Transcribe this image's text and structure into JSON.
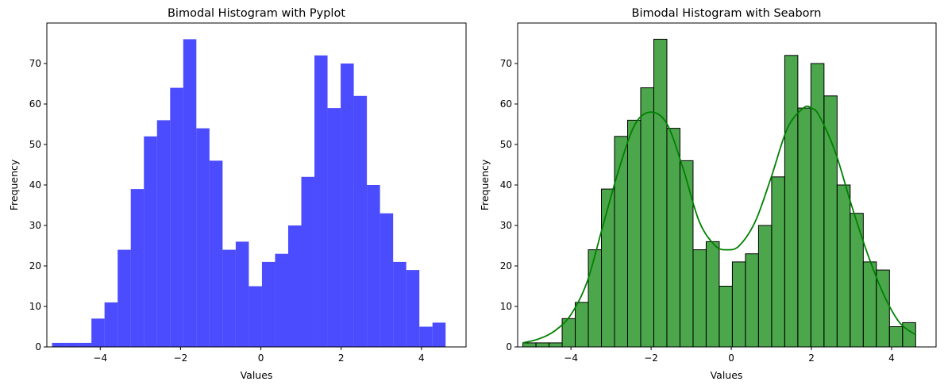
{
  "figure": {
    "background": "#ffffff"
  },
  "chart_data": [
    {
      "type": "bar",
      "library": "pyplot",
      "title": "Bimodal Histogram with Pyplot",
      "xlabel": "Values",
      "ylabel": "Frequency",
      "xlim": [
        -5.33,
        5.11
      ],
      "ylim": [
        0,
        80
      ],
      "xticks": [
        -4,
        -2,
        0,
        2,
        4
      ],
      "yticks": [
        0,
        10,
        20,
        30,
        40,
        50,
        60,
        70
      ],
      "bin_start": -5.2,
      "bin_width": 0.3267,
      "counts": [
        1,
        1,
        1,
        7,
        11,
        24,
        39,
        52,
        56,
        64,
        76,
        54,
        46,
        24,
        26,
        15,
        21,
        23,
        30,
        42,
        72,
        59,
        70,
        62,
        40,
        33,
        21,
        19,
        5,
        6
      ],
      "bar_color": "#0000ff",
      "bar_opacity": 0.7,
      "edge_color": "none",
      "grid": false
    },
    {
      "type": "bar",
      "library": "seaborn",
      "title": "Bimodal Histogram with Seaborn",
      "xlabel": "Values",
      "ylabel": "Frequency",
      "xlim": [
        -5.33,
        5.11
      ],
      "ylim": [
        0,
        80
      ],
      "xticks": [
        -4,
        -2,
        0,
        2,
        4
      ],
      "yticks": [
        0,
        10,
        20,
        30,
        40,
        50,
        60,
        70
      ],
      "bin_start": -5.2,
      "bin_width": 0.3267,
      "counts": [
        1,
        1,
        1,
        7,
        11,
        24,
        39,
        52,
        56,
        64,
        76,
        54,
        46,
        24,
        26,
        15,
        21,
        23,
        30,
        42,
        72,
        59,
        70,
        62,
        40,
        33,
        21,
        19,
        5,
        6
      ],
      "bar_color": "#008000",
      "bar_opacity": 0.7,
      "edge_color": "#000000",
      "kde": {
        "color": "#008000",
        "x": [
          -5.2,
          -4.8,
          -4.4,
          -4.0,
          -3.6,
          -3.2,
          -2.8,
          -2.4,
          -2.0,
          -1.6,
          -1.2,
          -0.8,
          -0.4,
          -0.1,
          0.2,
          0.6,
          1.0,
          1.4,
          1.8,
          2.0,
          2.2,
          2.6,
          3.0,
          3.4,
          3.8,
          4.2,
          4.6
        ],
        "y": [
          1,
          2,
          4,
          8,
          16,
          30,
          44,
          55,
          58,
          55,
          44,
          31,
          25,
          24,
          25,
          31,
          42,
          54,
          59,
          59,
          57,
          48,
          35,
          23,
          13,
          6,
          3
        ]
      },
      "grid": false
    }
  ]
}
